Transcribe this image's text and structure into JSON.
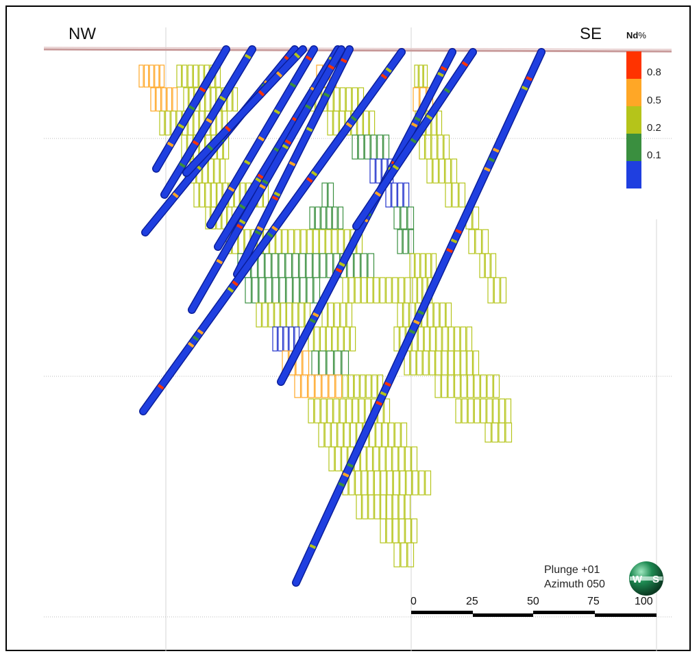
{
  "section": {
    "left_label": "NW",
    "right_label": "SE"
  },
  "legend": {
    "title": "Nd",
    "unit": "%",
    "entries": [
      {
        "label": "0.8",
        "color": "#ff3300"
      },
      {
        "label": "0.5",
        "color": "#ffa726"
      },
      {
        "label": "0.2",
        "color": "#b5c41a"
      },
      {
        "label": "0.1",
        "color": "#3a8f3f"
      },
      {
        "label": "",
        "color": "#1f3fe0"
      }
    ]
  },
  "view": {
    "plunge_text": "Plunge +01",
    "azimuth_text": "Azimuth 050",
    "globe_left": "W",
    "globe_right": "S"
  },
  "scale_bar": {
    "ticks": [
      "0",
      "25",
      "50",
      "75",
      "100"
    ]
  },
  "colors": {
    "topography": "#c89a9a",
    "drillhole": "#1f3fe0",
    "block_low": "#b5c41a",
    "block_mid": "#3a8f3f",
    "block_high": "#ffa726",
    "block_none": "#2233cc"
  }
}
